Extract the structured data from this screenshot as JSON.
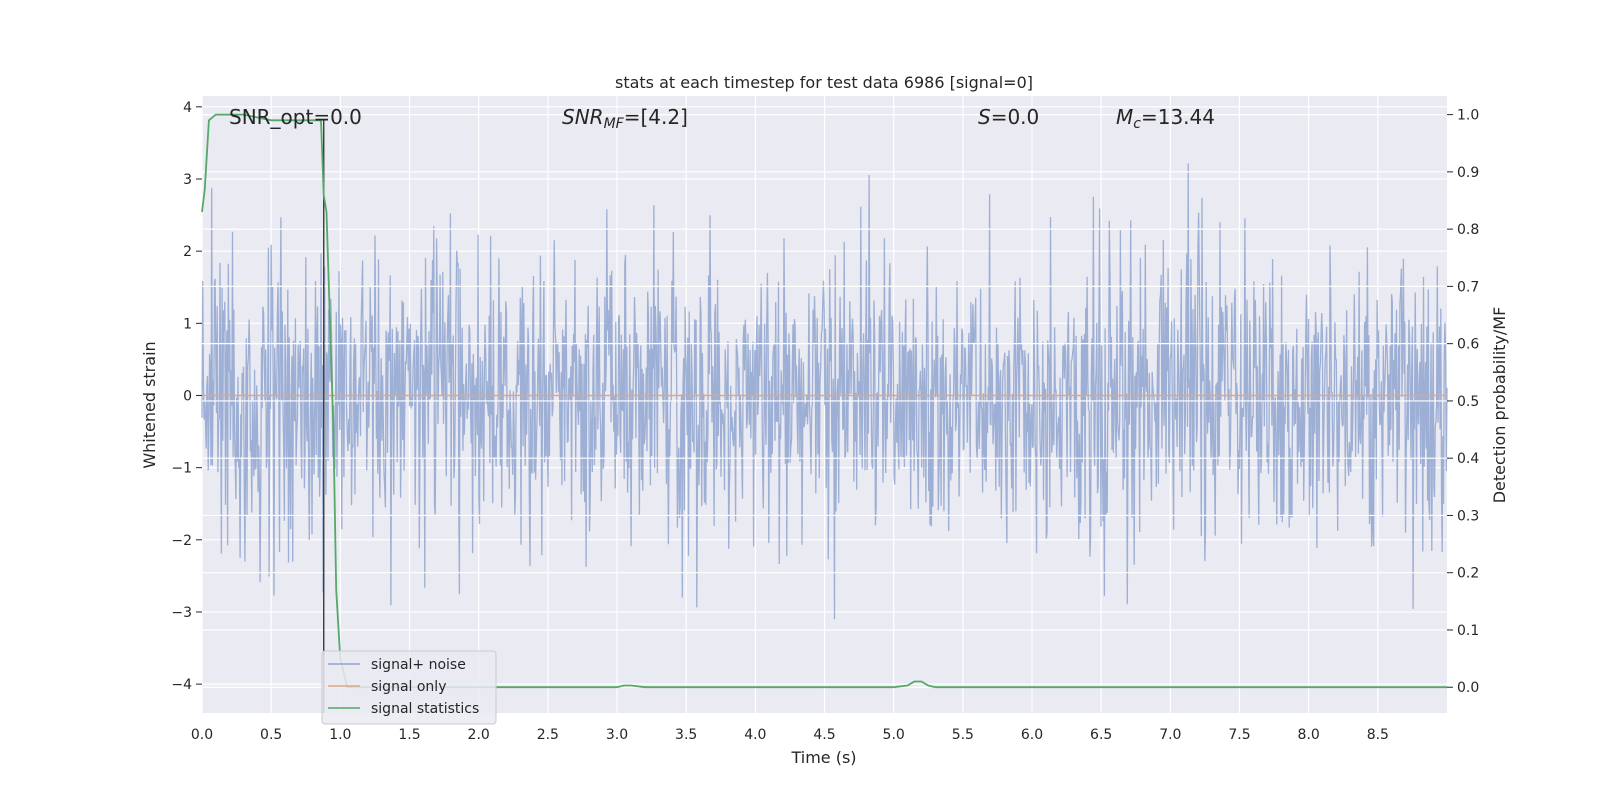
{
  "chart_data": {
    "type": "line",
    "title": "stats at each timestep for test data 6986 [signal=0]",
    "xlabel": "Time (s)",
    "ylabel": "Whitened strain",
    "ylabel_right": "Detection probability/MF",
    "xlim": [
      0.0,
      9.0
    ],
    "ylim": [
      -4.4,
      4.15
    ],
    "ylim_right": [
      -0.045,
      1.0325
    ],
    "xticks": [
      0.0,
      0.5,
      1.0,
      1.5,
      2.0,
      2.5,
      3.0,
      3.5,
      4.0,
      4.5,
      5.0,
      5.5,
      6.0,
      6.5,
      7.0,
      7.5,
      8.0,
      8.5
    ],
    "xtick_labels": [
      "0.0",
      "0.5",
      "1.0",
      "1.5",
      "2.0",
      "2.5",
      "3.0",
      "3.5",
      "4.0",
      "4.5",
      "5.0",
      "5.5",
      "6.0",
      "6.5",
      "7.0",
      "7.5",
      "8.0",
      "8.5"
    ],
    "yticks": [
      4,
      3,
      2,
      1,
      0,
      -1,
      -2,
      -3,
      -4
    ],
    "ytick_labels": [
      "4",
      "3",
      "2",
      "1",
      "0",
      "−1",
      "−2",
      "−3",
      "−4"
    ],
    "yticks_right": [
      1.0,
      0.9,
      0.8,
      0.7,
      0.6,
      0.5,
      0.4,
      0.3,
      0.2,
      0.1,
      0.0
    ],
    "ytick_labels_right": [
      "1.0",
      "0.9",
      "0.8",
      "0.7",
      "0.6",
      "0.5",
      "0.4",
      "0.3",
      "0.2",
      "0.1",
      "0.0"
    ],
    "grid": true,
    "legend_position": "lower-left",
    "annotations": {
      "snr_opt": "SNR_opt=0.0",
      "snr_mf_main": "SNR",
      "snr_mf_sub": "MF",
      "snr_mf_value": "=[4.2]",
      "s_main": "S",
      "s_value": "=0.0",
      "mc_main": "M",
      "mc_sub": "c",
      "mc_value": "=13.44"
    },
    "vline_x": 0.88,
    "series": [
      {
        "name": "signal+ noise",
        "color": "#8fa5cf",
        "kind": "whitened strain noise, approx. Gaussian, peak range about -4.0 to 3.8",
        "noise_seed": 6986,
        "n_samples": 1800
      },
      {
        "name": "signal only",
        "color": "#e1a57f",
        "x": [
          0.0,
          9.0
        ],
        "y": [
          0.0,
          0.0
        ]
      },
      {
        "name": "signal statistics",
        "color": "#55a868",
        "x": [
          0.0,
          0.02,
          0.05,
          0.1,
          0.15,
          0.3,
          0.5,
          0.7,
          0.86,
          0.88,
          0.9,
          0.95,
          0.97,
          1.0,
          1.05,
          1.2,
          2.0,
          3.0,
          3.05,
          3.1,
          3.2,
          4.0,
          5.0,
          5.1,
          5.15,
          5.2,
          5.25,
          5.3,
          5.5,
          6.0,
          7.0,
          8.0,
          9.0
        ],
        "y": [
          0.83,
          0.87,
          0.99,
          1.0,
          1.0,
          1.0,
          0.99,
          0.99,
          0.99,
          0.86,
          0.83,
          0.45,
          0.17,
          0.05,
          0.0,
          0.0,
          0.0,
          0.0,
          0.003,
          0.003,
          0.0,
          0.0,
          0.0,
          0.003,
          0.01,
          0.01,
          0.003,
          0.0,
          0.0,
          0.0,
          0.0,
          0.0,
          0.0
        ]
      }
    ]
  }
}
